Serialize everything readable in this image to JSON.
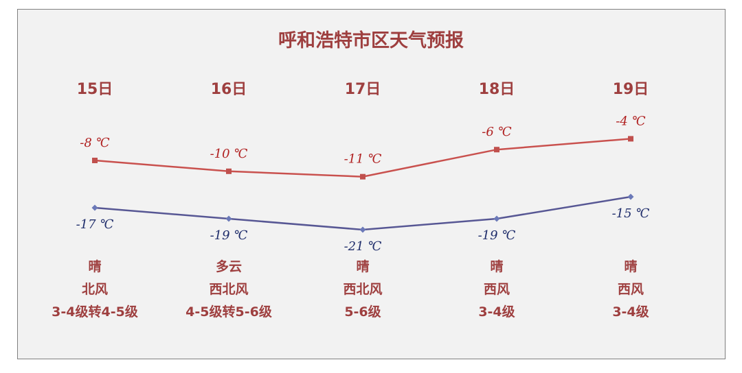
{
  "title": "呼和浩特市区天气预报",
  "days": [
    {
      "date": "15日",
      "weather": "晴",
      "wind_dir": "北风",
      "wind_level": "3-4级转4-5级"
    },
    {
      "date": "16日",
      "weather": "多云",
      "wind_dir": "西北风",
      "wind_level": "4-5级转5-6级"
    },
    {
      "date": "17日",
      "weather": "晴",
      "wind_dir": "西北风",
      "wind_level": "5-6级"
    },
    {
      "date": "18日",
      "weather": "晴",
      "wind_dir": "西风",
      "wind_level": "3-4级"
    },
    {
      "date": "19日",
      "weather": "晴",
      "wind_dir": "西风",
      "wind_level": "3-4级"
    }
  ],
  "chart_data": {
    "type": "line",
    "categories": [
      "15日",
      "16日",
      "17日",
      "18日",
      "19日"
    ],
    "series": [
      {
        "values": [
          -8,
          -10,
          -11,
          -6,
          -4
        ],
        "labels": [
          "-8 ℃",
          "-10 ℃",
          "-11 ℃",
          "-6 ℃",
          "-4 ℃"
        ],
        "color": "#c0504d",
        "marker": "square"
      },
      {
        "values": [
          -17,
          -19,
          -21,
          -19,
          -15
        ],
        "labels": [
          "-17 ℃",
          "-19 ℃",
          "-21 ℃",
          "-19 ℃",
          "-15 ℃"
        ],
        "color": "#3b3b8f",
        "marker": "diamond"
      }
    ],
    "grid": false
  },
  "colors": {
    "text": "#9e3f3f",
    "high_label": "#b02020",
    "low_label": "#1f2d6b",
    "panel_bg": "#f2f2f2",
    "panel_border": "#7f7f7f"
  }
}
